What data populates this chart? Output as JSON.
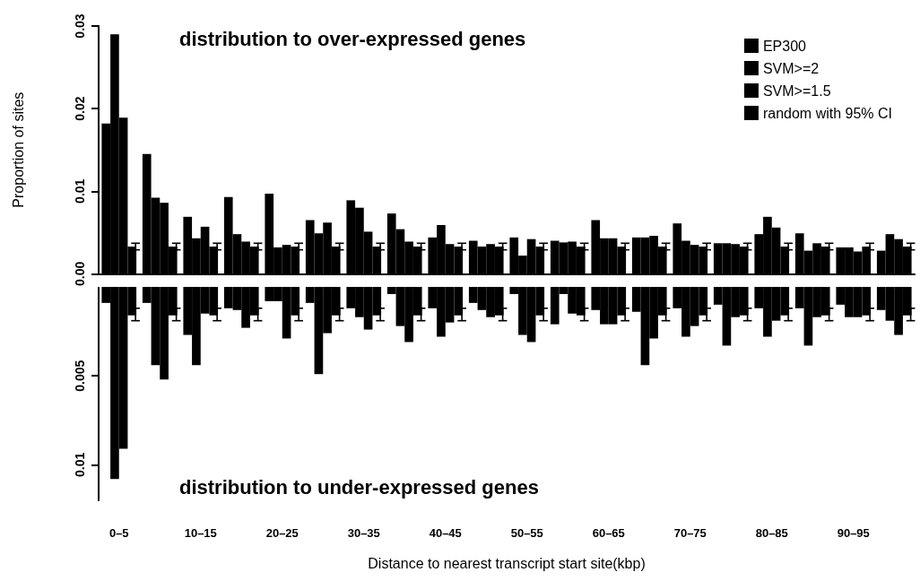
{
  "chart_data": [
    {
      "type": "bar",
      "ylabel": "Proportion of sites",
      "annotations": [
        "distribution to over-expressed genes"
      ],
      "legend": "top right",
      "tick_labels": "y",
      "categories": [
        null,
        null,
        null,
        null,
        null,
        null,
        null,
        null,
        null,
        null,
        null,
        null,
        null,
        null,
        null,
        null,
        null,
        null,
        null,
        null
      ],
      "ylim": [
        0,
        0.03
      ],
      "yticks": [
        {
          "value": 0,
          "label": "0.00"
        },
        0.01,
        0.02,
        0.03
      ],
      "series": [
        {
          "name": "EP300",
          "color": "#000000",
          "values": [
            0.0182,
            0.0145,
            0.0069,
            0.0093,
            0.0097,
            0.0065,
            0.0089,
            0.0073,
            0.0044,
            0.004,
            0.0044,
            0.004,
            0.0065,
            0.0044,
            0.0061,
            0.0037,
            0.0048,
            0.0049,
            0.0032,
            0.0028
          ]
        },
        {
          "name": "SVM>=2",
          "color": "#000000",
          "values": [
            0.029,
            0.0092,
            0.0043,
            0.0048,
            0.0032,
            0.0049,
            0.008,
            0.0054,
            0.0059,
            0.0033,
            0.0022,
            0.0038,
            0.0043,
            0.0044,
            0.004,
            0.0037,
            0.0069,
            0.0028,
            0.0032,
            0.0048
          ]
        },
        {
          "name": "SVM>=1.5",
          "color": "#000000",
          "values": [
            0.0189,
            0.0086,
            0.0057,
            0.0039,
            0.0035,
            0.0062,
            0.0051,
            0.0039,
            0.0036,
            0.0036,
            0.0042,
            0.0039,
            0.0043,
            0.0046,
            0.0035,
            0.0036,
            0.0056,
            0.0037,
            0.0027,
            0.0042
          ]
        },
        {
          "name": "random with 95% CI",
          "color": "#000000",
          "values": [
            0.0033,
            0.0033,
            0.0033,
            0.0033,
            0.0033,
            0.0033,
            0.0033,
            0.0033,
            0.0033,
            0.0033,
            0.0033,
            0.0033,
            0.0033,
            0.0033,
            0.0033,
            0.0033,
            0.0033,
            0.0033,
            0.0033,
            0.0033
          ],
          "errors": [
            [
              0.0029,
              0.0037
            ],
            [
              0.0029,
              0.0037
            ],
            [
              0.0029,
              0.0037
            ],
            [
              0.0029,
              0.0037
            ],
            [
              0.0029,
              0.0037
            ],
            [
              0.0029,
              0.0037
            ],
            [
              0.0029,
              0.0037
            ],
            [
              0.0029,
              0.0037
            ],
            [
              0.0029,
              0.0037
            ],
            [
              0.0029,
              0.0037
            ],
            [
              0.0029,
              0.0037
            ],
            [
              0.0029,
              0.0037
            ],
            [
              0.0029,
              0.0037
            ],
            [
              0.0029,
              0.0037
            ],
            [
              0.0029,
              0.0037
            ],
            [
              0.0029,
              0.0037
            ],
            [
              0.0029,
              0.0037
            ],
            [
              0.0029,
              0.0037
            ],
            [
              0.0029,
              0.0037
            ],
            [
              0.0029,
              0.0037
            ]
          ]
        }
      ]
    },
    {
      "type": "bar",
      "xlabel": "Distance to nearest transcript start site(kbp)",
      "annotations": [
        "distribution to under-expressed genes"
      ],
      "categories": [
        "0–5",
        null,
        "10–15",
        null,
        "20–25",
        null,
        "30–35",
        null,
        "40–45",
        null,
        "50–55",
        null,
        "60–65",
        null,
        "70–75",
        null,
        "80–85",
        null,
        "90–95",
        null
      ],
      "ylim": [
        0.012,
        0
      ],
      "yticks": [
        0.005,
        0.01
      ],
      "series": [
        {
          "color": "#000000",
          "values": [
            0.0009,
            0.0009,
            0.0027,
            0.0012,
            0.0008,
            0.0009,
            0.0012,
            0.0004,
            0.0012,
            0.0009,
            0.0004,
            0.0021,
            0.0013,
            0.0014,
            0.0012,
            0.001,
            0.0012,
            0.0012,
            0.001,
            0.0013
          ]
        },
        {
          "color": "#000000",
          "values": [
            0.0108,
            0.0044,
            0.0044,
            0.0013,
            0.0008,
            0.0049,
            0.0017,
            0.0022,
            0.0028,
            0.0013,
            0.0027,
            0.0004,
            0.0021,
            0.0044,
            0.0028,
            0.0033,
            0.0028,
            0.0033,
            0.0017,
            0.0019
          ]
        },
        {
          "color": "#000000",
          "values": [
            0.0091,
            0.0052,
            0.0015,
            0.0023,
            0.0029,
            0.0026,
            0.0024,
            0.0031,
            0.002,
            0.0017,
            0.0031,
            0.0015,
            0.0021,
            0.0029,
            0.0022,
            0.0017,
            0.0019,
            0.0017,
            0.0017,
            0.0027
          ]
        },
        {
          "color": "#000000",
          "values": [
            0.0016,
            0.0016,
            0.0016,
            0.0016,
            0.0016,
            0.0016,
            0.0016,
            0.0016,
            0.0016,
            0.0016,
            0.0016,
            0.0016,
            0.0016,
            0.0016,
            0.0016,
            0.0016,
            0.0016,
            0.0016,
            0.0016,
            0.0016
          ],
          "errors": [
            [
              0.0012,
              0.0019
            ],
            [
              0.0012,
              0.0019
            ],
            [
              0.0012,
              0.0019
            ],
            [
              0.0012,
              0.0019
            ],
            [
              0.0012,
              0.0019
            ],
            [
              0.0012,
              0.0019
            ],
            [
              0.0012,
              0.0019
            ],
            [
              0.0012,
              0.0019
            ],
            [
              0.0012,
              0.0019
            ],
            [
              0.0012,
              0.0019
            ],
            [
              0.0012,
              0.0019
            ],
            [
              0.0012,
              0.0019
            ],
            [
              0.0012,
              0.0019
            ],
            [
              0.0012,
              0.0019
            ],
            [
              0.0012,
              0.0019
            ],
            [
              0.0012,
              0.0019
            ],
            [
              0.0012,
              0.0019
            ],
            [
              0.0012,
              0.0019
            ],
            [
              0.0012,
              0.0019
            ],
            [
              0.0012,
              0.0019
            ]
          ]
        }
      ]
    }
  ]
}
